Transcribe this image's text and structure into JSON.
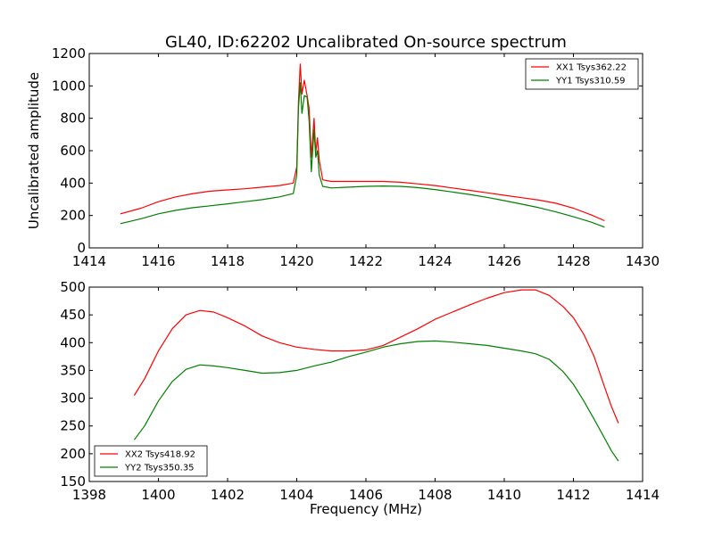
{
  "figure": {
    "title": "GL40, ID:62202 Uncalibrated On-source spectrum"
  },
  "chart_data": [
    {
      "type": "line",
      "title": "GL40, ID:62202 Uncalibrated On-source spectrum",
      "xlabel": "",
      "ylabel": "Uncalibrated amplitude",
      "xlim": [
        1414,
        1430
      ],
      "ylim": [
        0,
        1200
      ],
      "xticks": [
        1414,
        1416,
        1418,
        1420,
        1422,
        1424,
        1426,
        1428,
        1430
      ],
      "yticks": [
        0,
        200,
        400,
        600,
        800,
        1000,
        1200
      ],
      "grid": false,
      "legend_position": "top-right",
      "series": [
        {
          "name": "XX1 Tsys362.22",
          "color": "#ff0000",
          "points": [
            [
              1414.9,
              210
            ],
            [
              1415.5,
              245
            ],
            [
              1416,
              285
            ],
            [
              1416.5,
              315
            ],
            [
              1417,
              335
            ],
            [
              1417.5,
              350
            ],
            [
              1418,
              358
            ],
            [
              1418.5,
              365
            ],
            [
              1419,
              375
            ],
            [
              1419.5,
              385
            ],
            [
              1419.9,
              400
            ],
            [
              1420.0,
              500
            ],
            [
              1420.05,
              900
            ],
            [
              1420.1,
              1135
            ],
            [
              1420.15,
              950
            ],
            [
              1420.22,
              1035
            ],
            [
              1420.3,
              940
            ],
            [
              1420.36,
              860
            ],
            [
              1420.42,
              560
            ],
            [
              1420.5,
              800
            ],
            [
              1420.55,
              590
            ],
            [
              1420.6,
              680
            ],
            [
              1420.65,
              540
            ],
            [
              1420.75,
              420
            ],
            [
              1421,
              410
            ],
            [
              1421.5,
              410
            ],
            [
              1422,
              410
            ],
            [
              1422.5,
              410
            ],
            [
              1423,
              405
            ],
            [
              1423.5,
              395
            ],
            [
              1424,
              385
            ],
            [
              1424.5,
              370
            ],
            [
              1425,
              355
            ],
            [
              1425.5,
              340
            ],
            [
              1426,
              325
            ],
            [
              1426.5,
              310
            ],
            [
              1427,
              295
            ],
            [
              1427.5,
              275
            ],
            [
              1428,
              245
            ],
            [
              1428.5,
              205
            ],
            [
              1428.9,
              168
            ]
          ]
        },
        {
          "name": "YY1 Tsys310.59",
          "color": "#008000",
          "points": [
            [
              1414.9,
              150
            ],
            [
              1415.5,
              180
            ],
            [
              1416,
              210
            ],
            [
              1416.5,
              232
            ],
            [
              1417,
              248
            ],
            [
              1417.5,
              260
            ],
            [
              1418,
              272
            ],
            [
              1418.5,
              285
            ],
            [
              1419,
              298
            ],
            [
              1419.5,
              315
            ],
            [
              1419.9,
              335
            ],
            [
              1420.0,
              450
            ],
            [
              1420.05,
              860
            ],
            [
              1420.1,
              1020
            ],
            [
              1420.15,
              830
            ],
            [
              1420.22,
              940
            ],
            [
              1420.3,
              930
            ],
            [
              1420.36,
              780
            ],
            [
              1420.42,
              470
            ],
            [
              1420.5,
              730
            ],
            [
              1420.55,
              560
            ],
            [
              1420.6,
              600
            ],
            [
              1420.65,
              450
            ],
            [
              1420.75,
              380
            ],
            [
              1421,
              370
            ],
            [
              1421.5,
              375
            ],
            [
              1422,
              380
            ],
            [
              1422.5,
              382
            ],
            [
              1423,
              380
            ],
            [
              1423.5,
              372
            ],
            [
              1424,
              360
            ],
            [
              1424.5,
              345
            ],
            [
              1425,
              330
            ],
            [
              1425.5,
              312
            ],
            [
              1426,
              292
            ],
            [
              1426.5,
              270
            ],
            [
              1427,
              248
            ],
            [
              1427.5,
              222
            ],
            [
              1428,
              192
            ],
            [
              1428.5,
              160
            ],
            [
              1428.9,
              128
            ]
          ]
        }
      ]
    },
    {
      "type": "line",
      "title": "",
      "xlabel": "Frequency (MHz)",
      "ylabel": "",
      "xlim": [
        1398,
        1414
      ],
      "ylim": [
        150,
        500
      ],
      "xticks": [
        1398,
        1400,
        1402,
        1404,
        1406,
        1408,
        1410,
        1412,
        1414
      ],
      "yticks": [
        150,
        200,
        250,
        300,
        350,
        400,
        450,
        500
      ],
      "grid": false,
      "legend_position": "bottom-left",
      "series": [
        {
          "name": "XX2 Tsys418.92",
          "color": "#ff0000",
          "points": [
            [
              1399.3,
              305
            ],
            [
              1399.6,
              335
            ],
            [
              1400,
              385
            ],
            [
              1400.4,
              425
            ],
            [
              1400.8,
              450
            ],
            [
              1401.2,
              458
            ],
            [
              1401.6,
              455
            ],
            [
              1402,
              445
            ],
            [
              1402.5,
              430
            ],
            [
              1403,
              412
            ],
            [
              1403.5,
              400
            ],
            [
              1404,
              392
            ],
            [
              1404.5,
              388
            ],
            [
              1405,
              385
            ],
            [
              1405.5,
              385
            ],
            [
              1406,
              387
            ],
            [
              1406.5,
              395
            ],
            [
              1407,
              410
            ],
            [
              1407.5,
              425
            ],
            [
              1408,
              442
            ],
            [
              1408.5,
              455
            ],
            [
              1409,
              468
            ],
            [
              1409.5,
              480
            ],
            [
              1410,
              490
            ],
            [
              1410.5,
              495
            ],
            [
              1410.9,
              495
            ],
            [
              1411.3,
              485
            ],
            [
              1411.7,
              465
            ],
            [
              1412,
              445
            ],
            [
              1412.3,
              415
            ],
            [
              1412.6,
              375
            ],
            [
              1412.9,
              320
            ],
            [
              1413.1,
              285
            ],
            [
              1413.3,
              255
            ]
          ]
        },
        {
          "name": "YY2 Tsys350.35",
          "color": "#008000",
          "points": [
            [
              1399.3,
              225
            ],
            [
              1399.6,
              250
            ],
            [
              1400,
              295
            ],
            [
              1400.4,
              330
            ],
            [
              1400.8,
              352
            ],
            [
              1401.2,
              360
            ],
            [
              1401.6,
              358
            ],
            [
              1402,
              355
            ],
            [
              1402.5,
              350
            ],
            [
              1403,
              345
            ],
            [
              1403.5,
              346
            ],
            [
              1404,
              350
            ],
            [
              1404.5,
              358
            ],
            [
              1405,
              365
            ],
            [
              1405.5,
              375
            ],
            [
              1406,
              383
            ],
            [
              1406.5,
              392
            ],
            [
              1407,
              398
            ],
            [
              1407.5,
              402
            ],
            [
              1408,
              403
            ],
            [
              1408.5,
              401
            ],
            [
              1409,
              398
            ],
            [
              1409.5,
              395
            ],
            [
              1410,
              390
            ],
            [
              1410.5,
              385
            ],
            [
              1410.9,
              380
            ],
            [
              1411.3,
              370
            ],
            [
              1411.7,
              348
            ],
            [
              1412,
              325
            ],
            [
              1412.3,
              295
            ],
            [
              1412.6,
              262
            ],
            [
              1412.9,
              228
            ],
            [
              1413.1,
              205
            ],
            [
              1413.3,
              187
            ]
          ]
        }
      ]
    }
  ]
}
